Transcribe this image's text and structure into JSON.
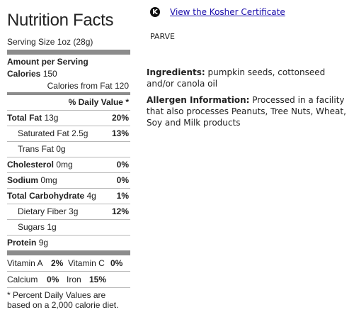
{
  "nutrition": {
    "title": "Nutrition Facts",
    "serving_size": "Serving Size 1oz (28g)",
    "amount_per_serving": "Amount per Serving",
    "calories_label": "Calories",
    "calories_value": "150",
    "calories_from_fat": "Calories from Fat 120",
    "daily_value_header": "% Daily Value *",
    "rows": [
      {
        "label": "Total Fat",
        "amount": "13g",
        "pct": "20%",
        "bold": true,
        "indent": false
      },
      {
        "label": "Saturated Fat",
        "amount": "2.5g",
        "pct": "13%",
        "bold": false,
        "indent": true
      },
      {
        "label": "Trans Fat",
        "amount": "0g",
        "pct": "",
        "bold": false,
        "indent": true
      },
      {
        "label": "Cholesterol",
        "amount": "0mg",
        "pct": "0%",
        "bold": true,
        "indent": false
      },
      {
        "label": "Sodium",
        "amount": "0mg",
        "pct": "0%",
        "bold": true,
        "indent": false
      },
      {
        "label": "Total Carbohydrate",
        "amount": "4g",
        "pct": "1%",
        "bold": true,
        "indent": false
      },
      {
        "label": "Dietary Fiber",
        "amount": "3g",
        "pct": "12%",
        "bold": false,
        "indent": true
      },
      {
        "label": "Sugars",
        "amount": "1g",
        "pct": "",
        "bold": false,
        "indent": true
      }
    ],
    "protein_label": "Protein",
    "protein_amount": "9g",
    "vitamins": [
      {
        "a_label": "Vitamin A",
        "a_pct": "2%",
        "b_label": "Vitamin C",
        "b_pct": "0%"
      },
      {
        "a_label": "Calcium",
        "a_pct": "0%",
        "b_label": "Iron",
        "b_pct": "15%"
      }
    ],
    "footnote": "* Percent Daily Values are based on a 2,000 calorie diet."
  },
  "kosher": {
    "link_text": "View the Kosher Certificate",
    "icon": "kosher-k-icon",
    "icon_glyph": "K",
    "designation": "PARVE"
  },
  "ingredients": {
    "label": "Ingredients:",
    "text": " pumpkin seeds, cottonseed and/or canola oil"
  },
  "allergen": {
    "label": "Allergen Information:",
    "text": " Processed in a facility that also processes Peanuts, Tree Nuts, Wheat, Soy and Milk products"
  },
  "colors": {
    "bar": "#8c8c8c",
    "link": "#1a0dab",
    "text": "#222222"
  }
}
